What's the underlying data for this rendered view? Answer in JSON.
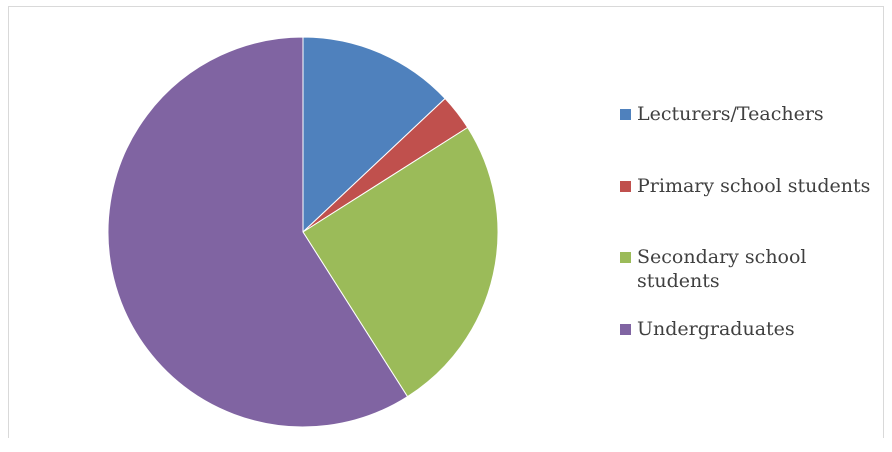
{
  "chart_data": {
    "type": "pie",
    "title": "",
    "legend_position": "right",
    "series": [
      {
        "values": [
          13,
          3,
          25,
          59
        ],
        "colors": [
          "#4f81bd",
          "#c0504d",
          "#9bbb59",
          "#8064a2"
        ]
      }
    ],
    "categories": [
      "Lecturers/Teachers",
      "Primary school students",
      "Secondary school students",
      "Undergraduates"
    ]
  },
  "legend": {
    "items": [
      {
        "label": "Lecturers/Teachers",
        "color": "#4f81bd"
      },
      {
        "label": "Primary school students",
        "color": "#c0504d"
      },
      {
        "label": "Secondary school students",
        "color": "#9bbb59"
      },
      {
        "label": "Undergraduates",
        "color": "#8064a2"
      }
    ]
  }
}
